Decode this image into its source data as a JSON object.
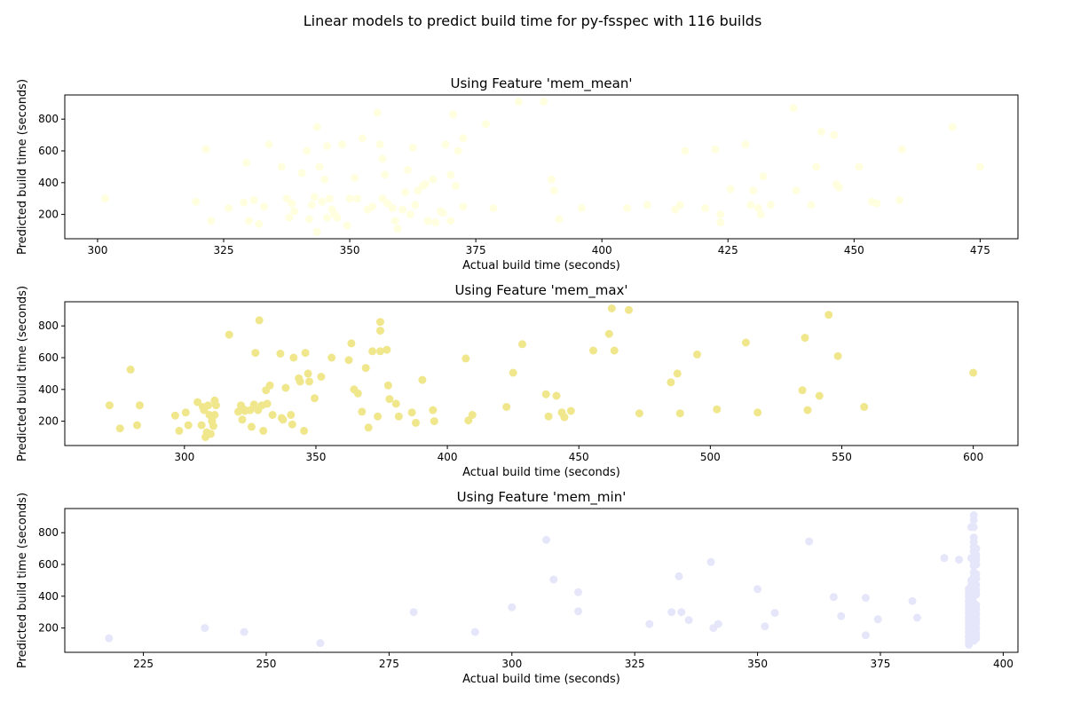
{
  "figure": {
    "suptitle": "Linear models to predict build time for py-fsspec with 116 builds"
  },
  "chart_data": [
    {
      "type": "scatter",
      "title": "Using Feature 'mem_mean'",
      "xlabel": "Actual build time (seconds)",
      "ylabel": "Predicted build time (seconds)",
      "xlim": [
        293.5,
        482.5
      ],
      "ylim": [
        47,
        952
      ],
      "xticks": [
        300,
        325,
        350,
        375,
        400,
        425,
        450,
        475
      ],
      "yticks": [
        200,
        400,
        600,
        800
      ],
      "color": "#ffffe0",
      "grid": false,
      "points": [
        [
          301.5,
          300
        ],
        [
          319.5,
          280
        ],
        [
          321.5,
          610
        ],
        [
          322.5,
          160
        ],
        [
          326,
          240
        ],
        [
          329,
          275
        ],
        [
          329.5,
          525
        ],
        [
          330,
          160
        ],
        [
          331,
          290
        ],
        [
          332,
          140
        ],
        [
          333,
          250
        ],
        [
          334,
          640
        ],
        [
          336.5,
          500
        ],
        [
          337.5,
          300
        ],
        [
          338,
          180
        ],
        [
          338.5,
          270
        ],
        [
          339,
          220
        ],
        [
          340.5,
          460
        ],
        [
          341.5,
          600
        ],
        [
          342,
          170
        ],
        [
          342.5,
          260
        ],
        [
          343,
          310
        ],
        [
          343.5,
          90
        ],
        [
          343.5,
          750
        ],
        [
          344,
          500
        ],
        [
          344.5,
          280
        ],
        [
          345,
          420
        ],
        [
          345.5,
          630
        ],
        [
          345.5,
          180
        ],
        [
          346,
          300
        ],
        [
          346.5,
          230
        ],
        [
          347,
          200
        ],
        [
          347.5,
          180
        ],
        [
          348.5,
          640
        ],
        [
          349.5,
          130
        ],
        [
          350,
          300
        ],
        [
          351,
          430
        ],
        [
          351.5,
          300
        ],
        [
          352.5,
          680
        ],
        [
          353.5,
          230
        ],
        [
          354.5,
          250
        ],
        [
          355.5,
          840
        ],
        [
          356,
          640
        ],
        [
          356.5,
          300
        ],
        [
          356.5,
          550
        ],
        [
          357,
          450
        ],
        [
          357.5,
          270
        ],
        [
          358.5,
          240
        ],
        [
          359,
          160
        ],
        [
          359.5,
          110
        ],
        [
          360.5,
          230
        ],
        [
          361,
          340
        ],
        [
          361.5,
          480
        ],
        [
          362,
          200
        ],
        [
          362.5,
          620
        ],
        [
          363,
          260
        ],
        [
          363.5,
          350
        ],
        [
          364.5,
          380
        ],
        [
          365,
          390
        ],
        [
          365.5,
          160
        ],
        [
          366.5,
          420
        ],
        [
          367,
          150
        ],
        [
          368,
          220
        ],
        [
          368.5,
          210
        ],
        [
          369,
          640
        ],
        [
          370,
          160
        ],
        [
          370,
          450
        ],
        [
          370.5,
          830
        ],
        [
          371,
          380
        ],
        [
          371.5,
          600
        ],
        [
          372.5,
          680
        ],
        [
          372.5,
          250
        ],
        [
          377,
          770
        ],
        [
          378.5,
          240
        ],
        [
          383.5,
          910
        ],
        [
          388.5,
          910
        ],
        [
          390,
          420
        ],
        [
          390.5,
          350
        ],
        [
          391.5,
          170
        ],
        [
          396,
          240
        ],
        [
          405,
          240
        ],
        [
          409,
          260
        ],
        [
          414.5,
          230
        ],
        [
          415.5,
          260
        ],
        [
          416.5,
          600
        ],
        [
          420.5,
          240
        ],
        [
          422.5,
          610
        ],
        [
          423.5,
          200
        ],
        [
          423.5,
          150
        ],
        [
          425.5,
          360
        ],
        [
          428.5,
          640
        ],
        [
          429.5,
          260
        ],
        [
          430,
          350
        ],
        [
          431,
          240
        ],
        [
          431.5,
          200
        ],
        [
          432,
          440
        ],
        [
          433.5,
          260
        ],
        [
          438,
          870
        ],
        [
          438.5,
          350
        ],
        [
          441.5,
          260
        ],
        [
          442.5,
          500
        ],
        [
          443.5,
          720
        ],
        [
          446,
          700
        ],
        [
          446.5,
          390
        ],
        [
          447,
          370
        ],
        [
          451,
          500
        ],
        [
          453.5,
          280
        ],
        [
          454.5,
          270
        ],
        [
          459.5,
          610
        ],
        [
          459,
          290
        ],
        [
          469.5,
          750
        ],
        [
          475,
          500
        ]
      ]
    },
    {
      "type": "scatter",
      "title": "Using Feature 'mem_max'",
      "xlabel": "Actual build time (seconds)",
      "ylabel": "Predicted build time (seconds)",
      "xlim": [
        254.5,
        617
      ],
      "ylim": [
        47,
        952
      ],
      "xticks": [
        300,
        350,
        400,
        450,
        500,
        550,
        600
      ],
      "yticks": [
        200,
        400,
        600,
        800
      ],
      "color": "#f0e68c",
      "grid": false,
      "points": [
        [
          271.5,
          300
        ],
        [
          275.5,
          155
        ],
        [
          279.5,
          525
        ],
        [
          282,
          175
        ],
        [
          283,
          300
        ],
        [
          296.5,
          235
        ],
        [
          298,
          140
        ],
        [
          300.5,
          255
        ],
        [
          301.5,
          175
        ],
        [
          305,
          320
        ],
        [
          306.5,
          175
        ],
        [
          307,
          290
        ],
        [
          307.5,
          270
        ],
        [
          308,
          100
        ],
        [
          308.5,
          130
        ],
        [
          309,
          300
        ],
        [
          309.5,
          240
        ],
        [
          310,
          120
        ],
        [
          310.5,
          200
        ],
        [
          311,
          170
        ],
        [
          311.5,
          330
        ],
        [
          311.5,
          240
        ],
        [
          312,
          300
        ],
        [
          317,
          745
        ],
        [
          320.5,
          260
        ],
        [
          321.5,
          300
        ],
        [
          322,
          210
        ],
        [
          322.5,
          275
        ],
        [
          323,
          265
        ],
        [
          325,
          270
        ],
        [
          325.5,
          165
        ],
        [
          326.5,
          305
        ],
        [
          327,
          630
        ],
        [
          328,
          270
        ],
        [
          328.5,
          835
        ],
        [
          329.5,
          300
        ],
        [
          330,
          140
        ],
        [
          331,
          395
        ],
        [
          331.5,
          310
        ],
        [
          332.5,
          425
        ],
        [
          333.5,
          240
        ],
        [
          336.5,
          625
        ],
        [
          337,
          220
        ],
        [
          337.5,
          210
        ],
        [
          338.5,
          410
        ],
        [
          340.5,
          240
        ],
        [
          341,
          180
        ],
        [
          341.5,
          600
        ],
        [
          343.5,
          470
        ],
        [
          344,
          450
        ],
        [
          345.5,
          140
        ],
        [
          346,
          630
        ],
        [
          347,
          500
        ],
        [
          347.5,
          450
        ],
        [
          349.5,
          345
        ],
        [
          352,
          480
        ],
        [
          356,
          600
        ],
        [
          362.5,
          585
        ],
        [
          363.5,
          690
        ],
        [
          364.5,
          400
        ],
        [
          366,
          375
        ],
        [
          367.5,
          260
        ],
        [
          369,
          535
        ],
        [
          370,
          160
        ],
        [
          371.5,
          640
        ],
        [
          373.5,
          230
        ],
        [
          374.5,
          640
        ],
        [
          374.5,
          770
        ],
        [
          374.5,
          825
        ],
        [
          377,
          650
        ],
        [
          377.5,
          425
        ],
        [
          378,
          340
        ],
        [
          380.5,
          310
        ],
        [
          381.5,
          230
        ],
        [
          386.5,
          255
        ],
        [
          388,
          190
        ],
        [
          390.5,
          460
        ],
        [
          394.5,
          270
        ],
        [
          395,
          200
        ],
        [
          407,
          595
        ],
        [
          408,
          205
        ],
        [
          409.5,
          240
        ],
        [
          422.5,
          290
        ],
        [
          425,
          505
        ],
        [
          428.5,
          685
        ],
        [
          437.5,
          370
        ],
        [
          438.5,
          230
        ],
        [
          441.5,
          360
        ],
        [
          443.5,
          255
        ],
        [
          444.5,
          225
        ],
        [
          447,
          265
        ],
        [
          455.5,
          645
        ],
        [
          461.5,
          750
        ],
        [
          462.5,
          910
        ],
        [
          463.5,
          645
        ],
        [
          469,
          900
        ],
        [
          473,
          250
        ],
        [
          485,
          445
        ],
        [
          487.5,
          500
        ],
        [
          488.5,
          250
        ],
        [
          495,
          620
        ],
        [
          502.5,
          275
        ],
        [
          513.5,
          695
        ],
        [
          518,
          255
        ],
        [
          535,
          395
        ],
        [
          536,
          725
        ],
        [
          537,
          270
        ],
        [
          541.5,
          360
        ],
        [
          545,
          870
        ],
        [
          548.5,
          610
        ],
        [
          558.5,
          290
        ],
        [
          600,
          505
        ]
      ]
    },
    {
      "type": "scatter",
      "title": "Using Feature 'mem_min'",
      "xlabel": "Actual build time (seconds)",
      "ylabel": "Predicted build time (seconds)",
      "xlim": [
        209,
        403
      ],
      "ylim": [
        47,
        952
      ],
      "xticks": [
        225,
        250,
        275,
        300,
        325,
        350,
        375,
        400
      ],
      "yticks": [
        200,
        400,
        600,
        800
      ],
      "color": "#e6e6fa",
      "grid": false,
      "points": [
        [
          218,
          135
        ],
        [
          237.5,
          200
        ],
        [
          245.5,
          175
        ],
        [
          261,
          105
        ],
        [
          280,
          300
        ],
        [
          292.5,
          175
        ],
        [
          300,
          330
        ],
        [
          307,
          755
        ],
        [
          308.5,
          505
        ],
        [
          313.5,
          305
        ],
        [
          313.5,
          425
        ],
        [
          328,
          225
        ],
        [
          332.5,
          300
        ],
        [
          334,
          525
        ],
        [
          334.5,
          300
        ],
        [
          336,
          250
        ],
        [
          341,
          200
        ],
        [
          340.5,
          615
        ],
        [
          342,
          225
        ],
        [
          350,
          445
        ],
        [
          351.5,
          210
        ],
        [
          353.5,
          295
        ],
        [
          360.5,
          745
        ],
        [
          365.5,
          395
        ],
        [
          367,
          275
        ],
        [
          372,
          155
        ],
        [
          372,
          390
        ],
        [
          374.5,
          255
        ],
        [
          381.5,
          370
        ],
        [
          382.5,
          265
        ],
        [
          388,
          640
        ],
        [
          391,
          630
        ],
        [
          393,
          95
        ],
        [
          393,
          120
        ],
        [
          393,
          145
        ],
        [
          393,
          170
        ],
        [
          393,
          195
        ],
        [
          393,
          220
        ],
        [
          393,
          245
        ],
        [
          393,
          270
        ],
        [
          393,
          295
        ],
        [
          393,
          320
        ],
        [
          393,
          345
        ],
        [
          393,
          370
        ],
        [
          393,
          395
        ],
        [
          393,
          420
        ],
        [
          393,
          445
        ],
        [
          393.5,
          470
        ],
        [
          393.5,
          500
        ],
        [
          393.5,
          640
        ],
        [
          393.5,
          835
        ],
        [
          394,
          120
        ],
        [
          394,
          150
        ],
        [
          394,
          180
        ],
        [
          394,
          210
        ],
        [
          394,
          240
        ],
        [
          394,
          270
        ],
        [
          394,
          300
        ],
        [
          394,
          330
        ],
        [
          394,
          360
        ],
        [
          394,
          400
        ],
        [
          394,
          430
        ],
        [
          394,
          460
        ],
        [
          394,
          490
        ],
        [
          394,
          520
        ],
        [
          394,
          550
        ],
        [
          394,
          590
        ],
        [
          394,
          620
        ],
        [
          394,
          650
        ],
        [
          394,
          680
        ],
        [
          394,
          710
        ],
        [
          394,
          740
        ],
        [
          394,
          770
        ],
        [
          394,
          835
        ],
        [
          394,
          880
        ],
        [
          394,
          910
        ],
        [
          394.5,
          135
        ],
        [
          394.5,
          165
        ],
        [
          394.5,
          195
        ],
        [
          394.5,
          225
        ],
        [
          394.5,
          255
        ],
        [
          394.5,
          285
        ],
        [
          394.5,
          315
        ],
        [
          394.5,
          345
        ],
        [
          394.5,
          410
        ],
        [
          394.5,
          440
        ],
        [
          394.5,
          470
        ],
        [
          394.5,
          510
        ],
        [
          394.5,
          540
        ],
        [
          394.5,
          600
        ],
        [
          394.5,
          630
        ],
        [
          394.5,
          660
        ],
        [
          394.5,
          700
        ]
      ]
    }
  ]
}
